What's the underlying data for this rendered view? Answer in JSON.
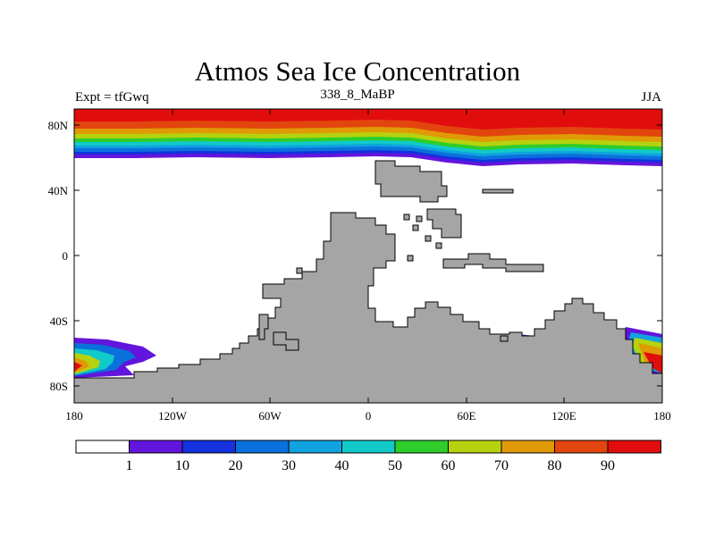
{
  "title": "Atmos Sea Ice Concentration",
  "experiment_label": "Expt = tfGwq",
  "subtitle": "338_8_MaBP",
  "season": "JJA",
  "colors": {
    "land": "#a5a5a5",
    "ocean_open": "#ffffff",
    "red": "#e10d0d",
    "orange_red": "#e2450d",
    "orange": "#e09a06",
    "yellow_green": "#b6d20f",
    "green": "#2ecd2b",
    "cyan": "#11c9c9",
    "sky": "#0fa3df",
    "azure": "#0a71dc",
    "blue": "#1530dd",
    "violet": "#6215dc"
  },
  "chart_data": {
    "type": "heatmap",
    "title": "Atmos Sea Ice Concentration",
    "x_ticks": [
      "180",
      "120W",
      "60W",
      "0",
      "60E",
      "120E",
      "180"
    ],
    "y_ticks": [
      "80N",
      "40N",
      "0",
      "40S",
      "80S"
    ],
    "xlim": [
      -180,
      180
    ],
    "ylim": [
      -90,
      90
    ],
    "colorbar_levels": [
      "1",
      "10",
      "20",
      "30",
      "40",
      "50",
      "60",
      "70",
      "80",
      "90"
    ],
    "colorbar_colors": [
      "#ffffff",
      "#6215dc",
      "#1530dd",
      "#0a71dc",
      "#0fa3df",
      "#11c9c9",
      "#2ecd2b",
      "#b6d20f",
      "#e09a06",
      "#e2450d",
      "#e10d0d"
    ],
    "arctic_bands_lat": [
      {
        "min_lat": 81,
        "value_band": 10
      },
      {
        "min_lat": 77,
        "value_band": 9
      },
      {
        "min_lat": 73,
        "value_band": 8
      },
      {
        "min_lat": 70,
        "value_band": 7
      },
      {
        "min_lat": 67,
        "value_band": 6
      },
      {
        "min_lat": 65,
        "value_band": 5
      },
      {
        "min_lat": 63,
        "value_band": 4
      },
      {
        "min_lat": 61,
        "value_band": 3
      },
      {
        "min_lat": 59,
        "value_band": 2
      },
      {
        "min_lat": 57,
        "value_band": 1
      }
    ]
  }
}
